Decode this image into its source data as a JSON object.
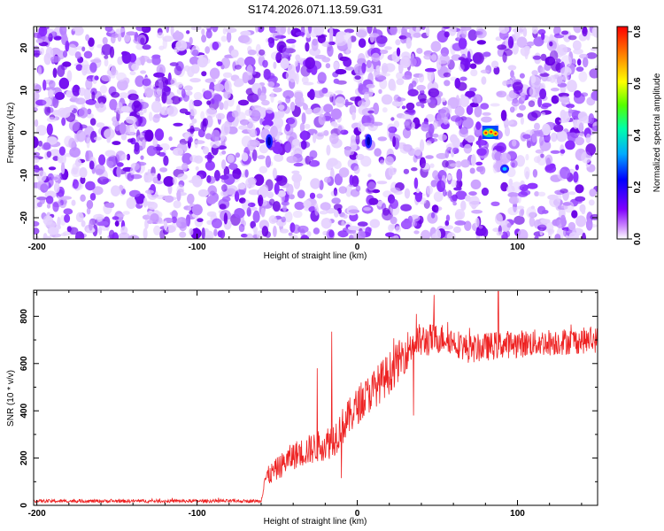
{
  "title": "S174.2026.071.13.59.G31",
  "chart_data": [
    {
      "type": "heatmap",
      "xlabel": "Height of straight line (km)",
      "ylabel": "Frequency (Hz)",
      "xlim": [
        -202,
        150
      ],
      "ylim": [
        -25,
        25
      ],
      "xticks": [
        -200,
        -100,
        0,
        100
      ],
      "yticks": [
        -20,
        -10,
        0,
        10,
        20
      ],
      "colorbar": {
        "label": "Normalized spectral amplitude",
        "range": [
          0,
          0.82
        ],
        "ticks": [
          "0.0",
          "0.2",
          "0.4",
          "0.6",
          "0.8"
        ],
        "colors": [
          "#ffffff",
          "#cc88ff",
          "#7f00ff",
          "#0000ff",
          "#00aaff",
          "#00ffaa",
          "#55ff00",
          "#ffff00",
          "#ff8800",
          "#ff0000"
        ]
      },
      "background_noise": {
        "amplitude_range": [
          0.0,
          0.2
        ],
        "color": "#7f00ff"
      },
      "features": [
        {
          "x": -55,
          "y": -2,
          "amplitude": 0.25,
          "shape": "vertical-streak"
        },
        {
          "x": 7,
          "y": -2,
          "amplitude": 0.22,
          "shape": "vertical-streak"
        },
        {
          "x": 83,
          "y": 0,
          "amplitude": 0.82,
          "shape": "hot-spot"
        },
        {
          "x": 92,
          "y": -8.5,
          "amplitude": 0.3,
          "shape": "spot"
        }
      ],
      "gap": {
        "x_from": 81,
        "x_to": 85
      }
    },
    {
      "type": "line",
      "xlabel": "Height of straight line (km)",
      "ylabel": "SNR (10 * v/v)",
      "xlim": [
        -202,
        150
      ],
      "ylim": [
        0,
        910
      ],
      "xticks": [
        -200,
        -100,
        0,
        100
      ],
      "yticks": [
        0,
        200,
        400,
        600,
        800
      ],
      "series": [
        {
          "color": "#ee2222",
          "profile": [
            {
              "x": -202,
              "mean": 18,
              "noise": 7
            },
            {
              "x": -60,
              "mean": 18,
              "noise": 7
            },
            {
              "x": -58,
              "mean": 110,
              "noise": 40
            },
            {
              "x": -40,
              "mean": 210,
              "noise": 60
            },
            {
              "x": -20,
              "mean": 260,
              "noise": 70
            },
            {
              "x": -15,
              "mean": 280,
              "noise": 80
            },
            {
              "x": 0,
              "mean": 420,
              "noise": 80
            },
            {
              "x": 20,
              "mean": 560,
              "noise": 90
            },
            {
              "x": 35,
              "mean": 690,
              "noise": 80
            },
            {
              "x": 55,
              "mean": 710,
              "noise": 60
            },
            {
              "x": 70,
              "mean": 660,
              "noise": 60
            },
            {
              "x": 90,
              "mean": 680,
              "noise": 60
            },
            {
              "x": 150,
              "mean": 700,
              "noise": 55
            }
          ],
          "spikes": [
            {
              "x": -16,
              "y": 735
            },
            {
              "x": -25,
              "y": 580
            },
            {
              "x": -10,
              "y": 115
            },
            {
              "x": 35,
              "y": 380
            },
            {
              "x": 48,
              "y": 890
            },
            {
              "x": 88,
              "y": 905
            }
          ]
        }
      ]
    }
  ]
}
